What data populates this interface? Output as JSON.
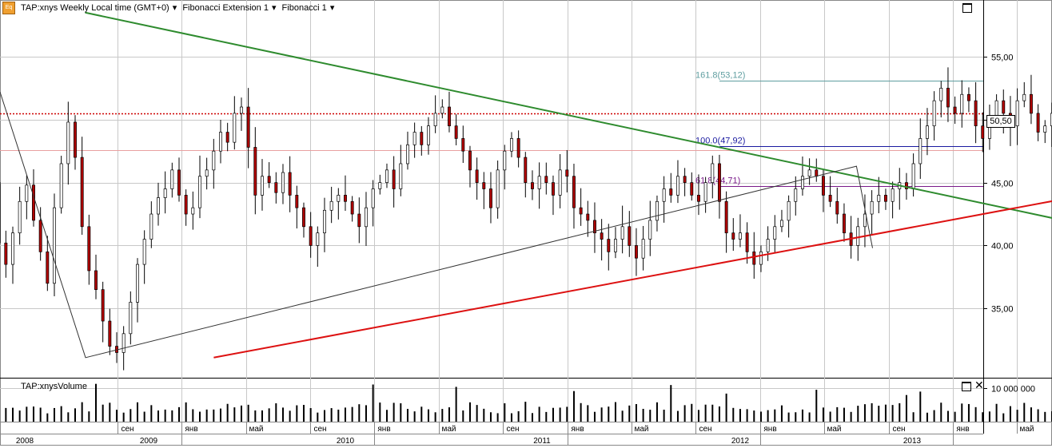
{
  "header": {
    "symbol_title": "TAP:xnys Weekly Local time (GMT+0)",
    "indicator_1": "Fibonacci Extension 1",
    "indicator_2": "Fibonacci 1",
    "logo_text": "Eq"
  },
  "volume_panel": {
    "title": "TAP:xnysVolume",
    "tick_label": "10 000 000"
  },
  "current_price_label": "50,50",
  "chart_data": [
    {
      "type": "candlestick",
      "title": "TAP:xnys Weekly",
      "y_axis": {
        "ticks": [
          "35,00",
          "40,00",
          "45,00",
          "50,00",
          "55,00"
        ],
        "tick_values": [
          35,
          40,
          45,
          50,
          55
        ],
        "ylim": [
          29.5,
          59.5
        ],
        "position": "right"
      },
      "x_axis": {
        "month_labels": [
          "сен",
          "янв",
          "май",
          "сен",
          "янв",
          "май",
          "сен",
          "янв",
          "май",
          "сен",
          "янв",
          "май",
          "сен",
          "янв",
          "май"
        ],
        "year_labels": [
          "2008",
          "2009",
          "2010",
          "2011",
          "2012",
          "2013"
        ],
        "date_range": [
          "2008-08",
          "2013-07"
        ]
      },
      "grid": true,
      "current_price": 50.5,
      "fibonacci_levels": [
        {
          "label": "161.8(53,12)",
          "value": 53.12,
          "color": "#5f9ea0"
        },
        {
          "label": "100.0(47,92)",
          "value": 47.92,
          "color": "#1a1aa0"
        },
        {
          "label": "61.8(44,71)",
          "value": 44.71,
          "color": "#7a1a8a"
        }
      ],
      "horizontal_lines": [
        {
          "value": 50.5,
          "style": "dotted",
          "color": "#cc0000"
        },
        {
          "value": 47.6,
          "style": "solid",
          "color": "#e8a0a0"
        }
      ],
      "trendlines": [
        {
          "color": "#2e8b2e",
          "from": [
            "2008-07",
            58.5
          ],
          "to": [
            "2013-07",
            42.1
          ]
        },
        {
          "color": "#dd1111",
          "from": [
            "2009-03",
            31.1
          ],
          "to": [
            "2013-07",
            43.6
          ]
        }
      ],
      "fib_extension_path": [
        [
          "2008-08",
          52.2
        ],
        [
          "2009-03",
          31.1
        ],
        [
          "2012-07",
          46.3
        ],
        [
          "2012-08",
          39.8
        ]
      ],
      "weekly_closes_approx": [
        45.0,
        40.2,
        38.5,
        41.0,
        43.5,
        44.8,
        42.0,
        39.5,
        37.0,
        43.0,
        46.5,
        49.8,
        47.0,
        41.5,
        38.0,
        36.5,
        34.0,
        32.0,
        31.5,
        33.0,
        35.5,
        38.5,
        40.5,
        42.5,
        43.8,
        44.5,
        46.0,
        44.0,
        42.5,
        43.0,
        45.5,
        46.0,
        47.5,
        49.0,
        48.2,
        50.5,
        51.0,
        47.8,
        44.0,
        45.5,
        45.0,
        44.2,
        45.8,
        44.0,
        43.0,
        41.5,
        40.0,
        41.0,
        42.8,
        43.5,
        44.0,
        43.5,
        42.5,
        41.5,
        43.0,
        44.5,
        45.0,
        46.0,
        44.5,
        46.5,
        48.0,
        49.0,
        48.0,
        49.5,
        50.5,
        51.0,
        49.5,
        48.5,
        47.5,
        46.0,
        45.0,
        44.5,
        43.0,
        46.0,
        47.5,
        48.5,
        47.0,
        45.0,
        44.5,
        45.5,
        45.0,
        44.0,
        46.0,
        45.5,
        43.0,
        42.5,
        42.0,
        41.0,
        40.5,
        39.5,
        40.5,
        41.5,
        40.0,
        39.0,
        40.5,
        42.0,
        43.5,
        44.5,
        44.0,
        45.5,
        45.0,
        44.0,
        43.5,
        45.0,
        46.5,
        43.5,
        41.0,
        40.5,
        41.0,
        39.5,
        38.5,
        39.5,
        40.5,
        41.5,
        42.0,
        43.5,
        44.5,
        45.5,
        46.0,
        45.5,
        44.0,
        43.5,
        42.5,
        41.0,
        40.0,
        41.5,
        42.5,
        43.5,
        44.0,
        43.5,
        44.5,
        45.0,
        44.5,
        46.5,
        48.5,
        49.5,
        51.5,
        52.5,
        51.0,
        50.5,
        52.0,
        51.5,
        49.5,
        48.5,
        50.0,
        51.5,
        50.5,
        49.5,
        51.5,
        52.0,
        50.5,
        49.0,
        49.5,
        50.5
      ]
    },
    {
      "type": "bar",
      "title": "TAP:xnysVolume",
      "y_axis": {
        "ticks": [
          "10 000 000"
        ],
        "tick_values": [
          10000000
        ]
      },
      "values_relative": "weekly volume, mostly 3–6 million, spikes near 10–12 million"
    }
  ]
}
